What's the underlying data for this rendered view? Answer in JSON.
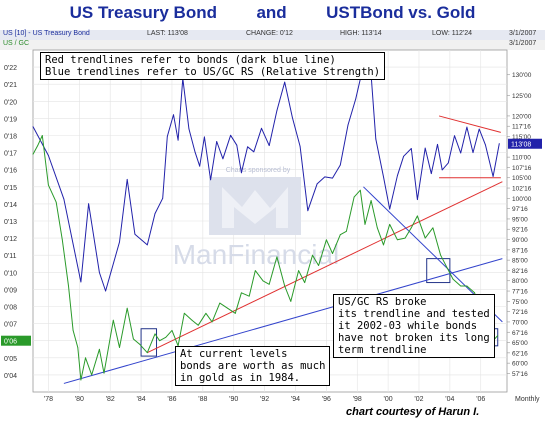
{
  "title_left": "US Treasury Bond",
  "title_mid": "and",
  "title_right": "USTBond vs. Gold",
  "header1": {
    "symbol": "US [10] - US Treasury Bond",
    "last": "LAST: 113'08",
    "change": "CHANGE: 0'12",
    "high": "HIGH: 113'14",
    "low": "LOW: 112'24",
    "date": "3/1/2007"
  },
  "header2": {
    "symbol": "US / GC",
    "date": "3/1/2007"
  },
  "annotations": {
    "legend_line1": "Red trendlines refer to bonds (dark blue line)",
    "legend_line2": "Blue trendlines refer to US/GC RS (Relative Strength)",
    "broke_line1": "US/GC RS broke",
    "broke_line2": "its trendline and tested",
    "broke_line3": "it 2002-03 while bonds",
    "broke_line4": "have not broken its long",
    "broke_line5": "term trendline",
    "current_line1": "At current levels",
    "current_line2": "bonds are worth as much",
    "current_line3": "in gold as in 1984."
  },
  "watermark": {
    "line1": "Charts sponsored by",
    "brand": "ManFinancial"
  },
  "credit": "chart courtesy of Harun I.",
  "colors": {
    "bond": "#2222aa",
    "ratio": "#2a9a2a",
    "red_trend": "#e03030",
    "blue_trend": "#3344cc",
    "title": "#1a2d9c",
    "box": "#223388"
  },
  "chart_data": {
    "type": "line",
    "title": "US Treasury Bond and USTBond vs. Gold",
    "x_unit": "year",
    "xlim": [
      1977,
      2007.7
    ],
    "x_tick_labels": [
      "'78",
      "'80",
      "'82",
      "'84",
      "'86",
      "'88",
      "'90",
      "'92",
      "'94",
      "'96",
      "'98",
      "'00",
      "'02",
      "'04",
      "'06",
      "Monthly"
    ],
    "x_tick_years": [
      1978,
      1980,
      1982,
      1984,
      1986,
      1988,
      1990,
      1992,
      1994,
      1996,
      1998,
      2000,
      2002,
      2004,
      2006
    ],
    "left_axis": {
      "ylim": [
        0.03,
        0.23
      ],
      "tick_labels": [
        "0'22",
        "0'21",
        "0'20",
        "0'19",
        "0'18",
        "0'17",
        "0'16",
        "0'15",
        "0'14",
        "0'13",
        "0'12",
        "0'11",
        "0'10",
        "0'09",
        "0'08",
        "0'07",
        "0'06",
        "0'05",
        "0'04"
      ],
      "tick_values": [
        0.22,
        0.21,
        0.2,
        0.19,
        0.18,
        0.17,
        0.16,
        0.15,
        0.14,
        0.13,
        0.12,
        0.11,
        0.1,
        0.09,
        0.08,
        0.07,
        0.06,
        0.05,
        0.04
      ],
      "last_value_label": "0'06",
      "last_value": 0.06
    },
    "right_axis": {
      "ylim": [
        53,
        136
      ],
      "tick_labels": [
        "130'00",
        "125'00",
        "120'00",
        "117'16",
        "115'00",
        "110'00",
        "107'16",
        "105'00",
        "102'16",
        "100'00",
        "97'16",
        "95'00",
        "92'16",
        "90'00",
        "87'16",
        "85'00",
        "82'16",
        "80'00",
        "77'16",
        "75'00",
        "72'16",
        "70'00",
        "67'16",
        "65'00",
        "62'16",
        "60'00",
        "57'16"
      ],
      "tick_values": [
        130,
        125,
        120,
        117.5,
        115,
        110,
        107.5,
        105,
        102.5,
        100,
        97.5,
        95,
        92.5,
        90,
        87.5,
        85,
        82.5,
        80,
        77.5,
        75,
        72.5,
        70,
        67.5,
        65,
        62.5,
        60,
        57.5
      ],
      "last_value_label": "113'08",
      "last_value": 113.25
    },
    "series": [
      {
        "name": "US Treasury Bond",
        "axis": "right",
        "x": [
          1977.0,
          1978.0,
          1979.0,
          1980.1,
          1980.6,
          1981.3,
          1981.7,
          1982.6,
          1983.1,
          1983.6,
          1984.4,
          1984.9,
          1985.4,
          1985.7,
          1986.1,
          1986.4,
          1986.7,
          1987.1,
          1987.5,
          1987.8,
          1988.1,
          1988.5,
          1988.9,
          1989.3,
          1989.8,
          1990.2,
          1990.5,
          1990.9,
          1991.3,
          1991.8,
          1992.3,
          1992.8,
          1993.3,
          1993.8,
          1994.3,
          1994.8,
          1995.4,
          1995.9,
          1996.4,
          1996.9,
          1997.4,
          1997.9,
          1998.4,
          1998.8,
          1999.2,
          1999.7,
          2000.1,
          2000.6,
          2001.0,
          2001.5,
          2001.9,
          2002.4,
          2002.8,
          2003.2,
          2003.5,
          2003.9,
          2004.3,
          2004.7,
          2005.1,
          2005.5,
          2005.9,
          2006.3,
          2006.8,
          2007.2
        ],
        "values": [
          117.4,
          110.4,
          99.8,
          79.7,
          98.7,
          82.0,
          77.5,
          89.4,
          104.6,
          91.3,
          88.7,
          96.3,
          100.0,
          115.0,
          120.3,
          114.1,
          129.1,
          116.9,
          111.2,
          107.8,
          114.9,
          104.5,
          113.8,
          109.6,
          115.3,
          112.9,
          106.2,
          112.5,
          111.3,
          117.0,
          112.8,
          121.3,
          128.2,
          119.6,
          112.6,
          97.0,
          103.5,
          105.2,
          104.9,
          108.1,
          117.8,
          124.1,
          132.2,
          135.0,
          114.4,
          105.2,
          97.4,
          105.5,
          110.2,
          112.1,
          99.7,
          112.2,
          106.0,
          113.1,
          106.9,
          108.6,
          115.2,
          111.0,
          117.3,
          111.1,
          116.8,
          113.0,
          105.3,
          113.3
        ]
      },
      {
        "name": "US / GC",
        "axis": "left",
        "x": [
          1977.0,
          1977.3,
          1977.6,
          1978.0,
          1978.5,
          1978.9,
          1979.3,
          1979.6,
          1979.9,
          1980.1,
          1980.4,
          1980.8,
          1981.3,
          1981.6,
          1982.2,
          1982.6,
          1983.1,
          1983.5,
          1983.9,
          1984.4,
          1984.9,
          1985.2,
          1985.6,
          1986.0,
          1986.4,
          1986.8,
          1987.3,
          1987.7,
          1988.2,
          1988.6,
          1989.1,
          1989.6,
          1990.1,
          1990.5,
          1991.0,
          1991.4,
          1991.9,
          1992.3,
          1992.8,
          1993.3,
          1993.7,
          1994.2,
          1994.6,
          1995.1,
          1995.5,
          1996.0,
          1996.4,
          1996.9,
          1997.3,
          1997.8,
          1998.2,
          1998.5,
          1998.9,
          1999.3,
          1999.7,
          2000.1,
          2000.6,
          2001.1,
          2001.5,
          2001.9,
          2002.4,
          2002.9,
          2003.4,
          2003.8,
          2004.2,
          2004.7,
          2005.1,
          2005.6,
          2006.1,
          2006.4,
          2006.8,
          2007.1
        ],
        "values": [
          0.169,
          0.174,
          0.18,
          0.151,
          0.141,
          0.119,
          0.092,
          0.066,
          0.056,
          0.037,
          0.05,
          0.04,
          0.055,
          0.041,
          0.072,
          0.056,
          0.079,
          0.061,
          0.058,
          0.053,
          0.064,
          0.06,
          0.062,
          0.066,
          0.057,
          0.076,
          0.072,
          0.069,
          0.076,
          0.071,
          0.082,
          0.079,
          0.076,
          0.088,
          0.086,
          0.101,
          0.095,
          0.093,
          0.109,
          0.092,
          0.083,
          0.101,
          0.094,
          0.11,
          0.104,
          0.119,
          0.111,
          0.122,
          0.124,
          0.144,
          0.148,
          0.128,
          0.142,
          0.126,
          0.116,
          0.128,
          0.119,
          0.12,
          0.126,
          0.133,
          0.12,
          0.126,
          0.11,
          0.103,
          0.096,
          0.092,
          0.092,
          0.088,
          0.071,
          0.062,
          0.06,
          0.063
        ]
      }
    ],
    "trendlines": [
      {
        "color": "red",
        "refers_to": "US Treasury Bond",
        "from": [
          1984.4,
          0.053
        ],
        "to": [
          2007.4,
          0.153
        ]
      },
      {
        "color": "red",
        "refers_to": "US Treasury Bond",
        "from": [
          2003.3,
          120.0
        ],
        "to": [
          2007.3,
          116.0
        ]
      },
      {
        "color": "red",
        "refers_to": "US Treasury Bond",
        "from": [
          2003.3,
          105.0
        ],
        "to": [
          2007.3,
          105.0
        ]
      },
      {
        "color": "blue",
        "refers_to": "US / GC",
        "from": [
          1979.0,
          0.035
        ],
        "to": [
          2007.4,
          0.108
        ]
      },
      {
        "color": "blue",
        "refers_to": "US / GC",
        "from": [
          1998.4,
          0.15
        ],
        "to": [
          2007.4,
          0.071
        ]
      }
    ],
    "highlight_boxes": [
      {
        "x": [
          1984.0,
          1985.0
        ],
        "y": [
          0.051,
          0.067
        ]
      },
      {
        "x": [
          2002.5,
          2004.0
        ],
        "y": [
          0.094,
          0.108
        ]
      },
      {
        "x": [
          2005.8,
          2007.1
        ],
        "y": [
          0.057,
          0.067
        ]
      }
    ],
    "grid": true
  }
}
